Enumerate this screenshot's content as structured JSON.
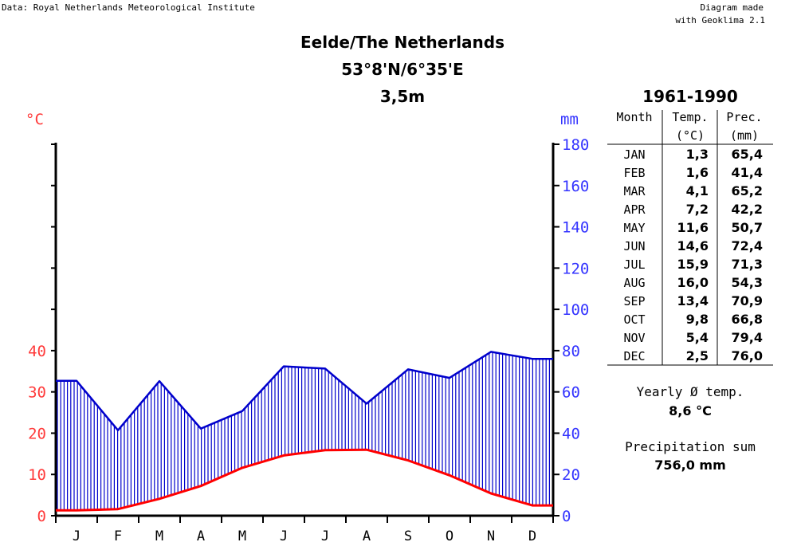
{
  "header": {
    "data_source": "Data: Royal Netherlands Meteorological Institute",
    "made_with_line1": "Diagram made",
    "made_with_line2": "with Geoklima 2.1"
  },
  "station": {
    "name": "Eelde/The Netherlands",
    "coordinates": "53°8'N/6°35'E",
    "elevation": "3,5m"
  },
  "period": "1961-1990",
  "table": {
    "headers": {
      "month": "Month",
      "temp": "Temp.",
      "temp_unit": "(°C)",
      "prec": "Prec.",
      "prec_unit": "(mm)"
    },
    "rows": [
      {
        "month": "JAN",
        "temp": "1,3",
        "prec": "65,4"
      },
      {
        "month": "FEB",
        "temp": "1,6",
        "prec": "41,4"
      },
      {
        "month": "MAR",
        "temp": "4,1",
        "prec": "65,2"
      },
      {
        "month": "APR",
        "temp": "7,2",
        "prec": "42,2"
      },
      {
        "month": "MAY",
        "temp": "11,6",
        "prec": "50,7"
      },
      {
        "month": "JUN",
        "temp": "14,6",
        "prec": "72,4"
      },
      {
        "month": "JUL",
        "temp": "15,9",
        "prec": "71,3"
      },
      {
        "month": "AUG",
        "temp": "16,0",
        "prec": "54,3"
      },
      {
        "month": "SEP",
        "temp": "13,4",
        "prec": "70,9"
      },
      {
        "month": "OCT",
        "temp": "9,8",
        "prec": "66,8"
      },
      {
        "month": "NOV",
        "temp": "5,4",
        "prec": "79,4"
      },
      {
        "month": "DEC",
        "temp": "2,5",
        "prec": "76,0"
      }
    ]
  },
  "summary": {
    "yearly_temp_label": "Yearly Ø temp.",
    "yearly_temp_value": "8,6 °C",
    "precip_sum_label": "Precipitation sum",
    "precip_sum_value": "756,0 mm"
  },
  "colors": {
    "temperature": "#ff0000",
    "precipitation": "#0000cc",
    "temp_axis_text": "#ff3a3a",
    "prec_axis_text": "#3333ff"
  },
  "chart_data": {
    "type": "line",
    "categories": [
      "J",
      "F",
      "M",
      "A",
      "M",
      "J",
      "J",
      "A",
      "S",
      "O",
      "N",
      "D"
    ],
    "series": [
      {
        "axis": "left",
        "values": [
          1.3,
          1.6,
          4.1,
          7.2,
          11.6,
          14.6,
          15.9,
          16.0,
          13.4,
          9.8,
          5.4,
          2.5
        ]
      },
      {
        "axis": "right",
        "values": [
          65.4,
          41.4,
          65.2,
          42.2,
          50.7,
          72.4,
          71.3,
          54.3,
          70.9,
          66.8,
          79.4,
          76.0
        ]
      }
    ],
    "left_axis": {
      "label": "°C",
      "ticks": [
        0,
        10,
        20,
        30,
        40
      ],
      "ylim": [
        0,
        90
      ]
    },
    "right_axis": {
      "label": "mm",
      "ticks": [
        0,
        20,
        40,
        60,
        80,
        100,
        120,
        140,
        160,
        180
      ],
      "ylim": [
        0,
        180
      ]
    },
    "precip_fill": "vertical hatching between temperature and precipitation curves"
  }
}
